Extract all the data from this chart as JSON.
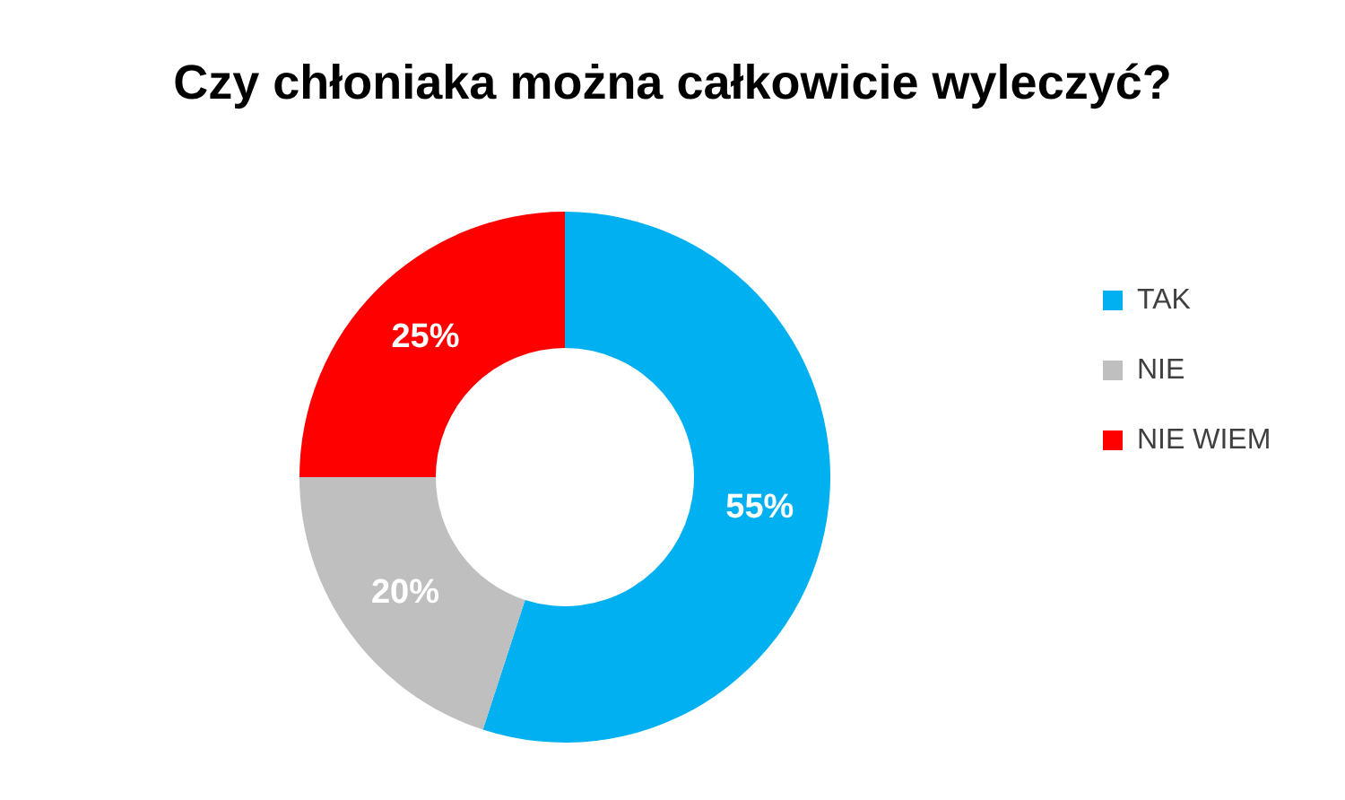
{
  "chart_data": {
    "type": "donut",
    "title": "Czy chłoniaka można całkowicie wyleczyć?",
    "categories": [
      "TAK",
      "NIE",
      "NIE WIEM"
    ],
    "values": [
      55,
      20,
      25
    ],
    "colors": [
      "#00b0f0",
      "#bfbfbf",
      "#ff0000"
    ],
    "value_labels": [
      "55%",
      "20%",
      "25%"
    ],
    "legend": "right"
  }
}
